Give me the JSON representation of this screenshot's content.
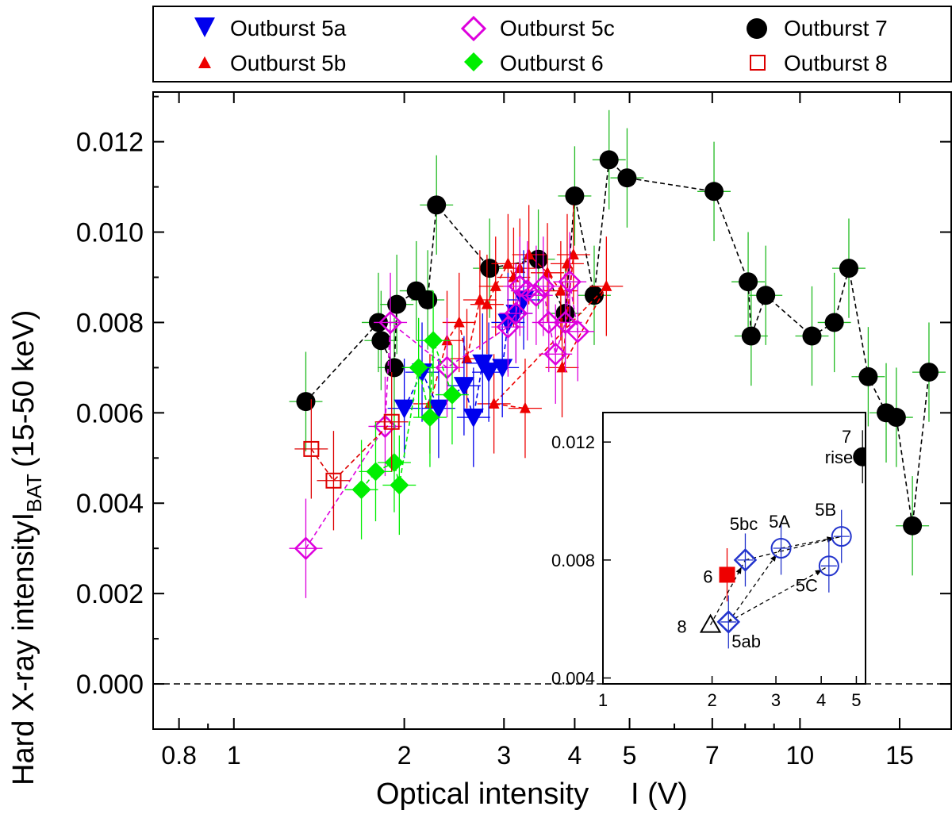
{
  "chart_data": [
    {
      "type": "scatter",
      "xscale": "log",
      "xlabel": "Optical intensity     I (V)",
      "ylabel_main": "Hard X-ray intensity",
      "ylabel_sym": "I",
      "ylabel_sub": "BAT",
      "ylabel_range": "(15-50 keV)",
      "xlim": [
        0.72,
        18.5
      ],
      "ylim": [
        -0.001,
        0.0131
      ],
      "xticks": [
        0.8,
        1,
        2,
        3,
        4,
        5,
        7,
        10,
        15
      ],
      "xtick_labels": [
        "0.8",
        "1",
        "2",
        "3",
        "4",
        "5",
        "7",
        "10",
        "15"
      ],
      "yticks": [
        0.0,
        0.002,
        0.004,
        0.006,
        0.008,
        0.01,
        0.012
      ],
      "ytick_labels": [
        "0.000",
        "0.002",
        "0.004",
        "0.006",
        "0.008",
        "0.010",
        "0.012"
      ],
      "reference_line_y": 0.0,
      "legend": {
        "placement": "top",
        "entries": [
          {
            "label": "Outburst 5a",
            "series": "5a"
          },
          {
            "label": "Outburst 5c",
            "series": "5c"
          },
          {
            "label": "Outburst 7",
            "series": "7"
          },
          {
            "label": "Outburst 5b",
            "series": "5b"
          },
          {
            "label": "Outburst 6",
            "series": "6"
          },
          {
            "label": "Outburst 8",
            "series": "8"
          }
        ]
      },
      "series": [
        {
          "id": "7",
          "name": "Outburst 7",
          "marker": "circle",
          "color": "#000000",
          "errcolor": "#22bb22",
          "line_color": "#000000",
          "connected": true,
          "points": [
            [
              1.34,
              0.00625
            ],
            [
              1.8,
              0.008
            ],
            [
              1.82,
              0.0076
            ],
            [
              1.92,
              0.007
            ],
            [
              1.94,
              0.0084
            ],
            [
              2.1,
              0.0087
            ],
            [
              2.2,
              0.0085
            ],
            [
              2.28,
              0.0106
            ],
            [
              2.83,
              0.0092
            ],
            [
              3.45,
              0.0094
            ],
            [
              3.85,
              0.0082
            ],
            [
              4.0,
              0.0108
            ],
            [
              4.33,
              0.0086
            ],
            [
              4.6,
              0.0116
            ],
            [
              4.95,
              0.0112
            ],
            [
              7.05,
              0.0109
            ],
            [
              8.1,
              0.0089
            ],
            [
              8.2,
              0.0077
            ],
            [
              8.7,
              0.0086
            ],
            [
              10.5,
              0.0077
            ],
            [
              11.5,
              0.008
            ],
            [
              12.2,
              0.0092
            ],
            [
              13.2,
              0.0068
            ],
            [
              14.2,
              0.006
            ],
            [
              14.8,
              0.0059
            ],
            [
              15.8,
              0.0035
            ],
            [
              16.9,
              0.0069
            ]
          ]
        },
        {
          "id": "5b",
          "name": "Outburst 5b",
          "marker": "triangle-up",
          "color": "#ee0000",
          "errcolor": "#ee0000",
          "line_color": "#ee0000",
          "connected": true,
          "points": [
            [
              2.22,
              0.0062
            ],
            [
              2.38,
              0.0076
            ],
            [
              2.5,
              0.008
            ],
            [
              2.58,
              0.0072
            ],
            [
              2.72,
              0.0085
            ],
            [
              2.8,
              0.0084
            ],
            [
              2.9,
              0.0088
            ],
            [
              3.05,
              0.0093
            ],
            [
              3.12,
              0.009
            ],
            [
              3.2,
              0.0092
            ],
            [
              3.32,
              0.0095
            ],
            [
              3.58,
              0.0091
            ],
            [
              3.78,
              0.0087
            ],
            [
              3.88,
              0.0093
            ],
            [
              3.98,
              0.0095
            ],
            [
              3.8,
              0.007
            ],
            [
              4.55,
              0.0088
            ],
            [
              2.88,
              0.0062
            ],
            [
              3.27,
              0.0061
            ]
          ]
        },
        {
          "id": "5a",
          "name": "Outburst 5a",
          "marker": "triangle-down",
          "color": "#0000ee",
          "errcolor": "#0000ee",
          "line_color": "#0000ee",
          "connected": true,
          "points": [
            [
              2.0,
              0.0061
            ],
            [
              2.15,
              0.0069
            ],
            [
              2.3,
              0.0061
            ],
            [
              2.55,
              0.0066
            ],
            [
              2.65,
              0.0059
            ],
            [
              2.75,
              0.0071
            ],
            [
              2.82,
              0.0069
            ],
            [
              2.98,
              0.007
            ],
            [
              3.05,
              0.008
            ],
            [
              3.15,
              0.0082
            ],
            [
              3.25,
              0.0085
            ]
          ]
        },
        {
          "id": "5c",
          "name": "Outburst 5c",
          "marker": "diamond-open",
          "color": "#dd00dd",
          "errcolor": "#dd00dd",
          "line_color": "#dd00dd",
          "connected": true,
          "points": [
            [
              1.34,
              0.003
            ],
            [
              1.85,
              0.0057
            ],
            [
              1.89,
              0.008
            ],
            [
              2.38,
              0.007
            ],
            [
              3.05,
              0.0079
            ],
            [
              3.15,
              0.0082
            ],
            [
              3.2,
              0.0088
            ],
            [
              3.3,
              0.0087
            ],
            [
              3.42,
              0.0086
            ],
            [
              3.52,
              0.0088
            ],
            [
              3.6,
              0.008
            ],
            [
              3.7,
              0.0073
            ],
            [
              3.85,
              0.008
            ],
            [
              3.92,
              0.0089
            ],
            [
              4.05,
              0.0078
            ]
          ]
        },
        {
          "id": "6",
          "name": "Outburst 6",
          "marker": "diamond-filled",
          "color": "#00ee00",
          "errcolor": "#00ee00",
          "line_color": "#00ee00",
          "connected": true,
          "points": [
            [
              1.68,
              0.0043
            ],
            [
              1.78,
              0.0047
            ],
            [
              1.92,
              0.0049
            ],
            [
              1.96,
              0.0044
            ],
            [
              2.12,
              0.007
            ],
            [
              2.22,
              0.0059
            ],
            [
              2.25,
              0.0076
            ],
            [
              2.43,
              0.0064
            ]
          ]
        },
        {
          "id": "8",
          "name": "Outburst 8",
          "marker": "square-open",
          "color": "#dd0000",
          "errcolor": "#dd0000",
          "line_color": "#dd0000",
          "connected": true,
          "points": [
            [
              1.37,
              0.0052
            ],
            [
              1.5,
              0.0045
            ],
            [
              1.9,
              0.0058
            ]
          ]
        }
      ]
    },
    {
      "type": "scatter",
      "xscale": "log",
      "placement": "inset-bottom-right",
      "xlim": [
        1.0,
        5.3
      ],
      "ylim": [
        0.0038,
        0.013
      ],
      "xticks": [
        1,
        2,
        3,
        4,
        5
      ],
      "xtick_labels": [
        "1",
        "2",
        "3",
        "4",
        "5"
      ],
      "yticks": [
        0.004,
        0.008,
        0.012
      ],
      "ytick_labels": [
        "0.004",
        "0.008",
        "0.012"
      ],
      "points": [
        {
          "id": "8",
          "label": "8",
          "marker": "triangle-open",
          "color": "#000000",
          "x": 1.98,
          "y": 0.0058
        },
        {
          "id": "5ab",
          "label": "5ab",
          "marker": "diamond-open",
          "color": "#2233cc",
          "x": 2.22,
          "y": 0.0059
        },
        {
          "id": "6",
          "label": "6",
          "marker": "square-filled",
          "color": "#ee0000",
          "x": 2.2,
          "y": 0.0075
        },
        {
          "id": "5bc",
          "label": "5bc",
          "marker": "diamond-open",
          "color": "#2233cc",
          "x": 2.47,
          "y": 0.008
        },
        {
          "id": "5A",
          "label": "5A",
          "marker": "circle-open",
          "color": "#2233cc",
          "x": 3.1,
          "y": 0.0084
        },
        {
          "id": "5B",
          "label": "5B",
          "marker": "circle-open",
          "color": "#2233cc",
          "x": 4.55,
          "y": 0.0088
        },
        {
          "id": "5C",
          "label": "5C",
          "marker": "circle-open",
          "color": "#2233cc",
          "x": 4.2,
          "y": 0.0078
        },
        {
          "id": "7rise",
          "label": "7",
          "label2": "rise",
          "marker": "circle-filled",
          "color": "#000000",
          "x": 5.2,
          "y": 0.0115
        }
      ],
      "arrows": [
        [
          "5ab",
          "5A"
        ],
        [
          "5ab",
          "5C"
        ],
        [
          "8",
          "5bc"
        ],
        [
          "5bc",
          "5B"
        ],
        [
          "5A",
          "5B"
        ]
      ]
    }
  ]
}
